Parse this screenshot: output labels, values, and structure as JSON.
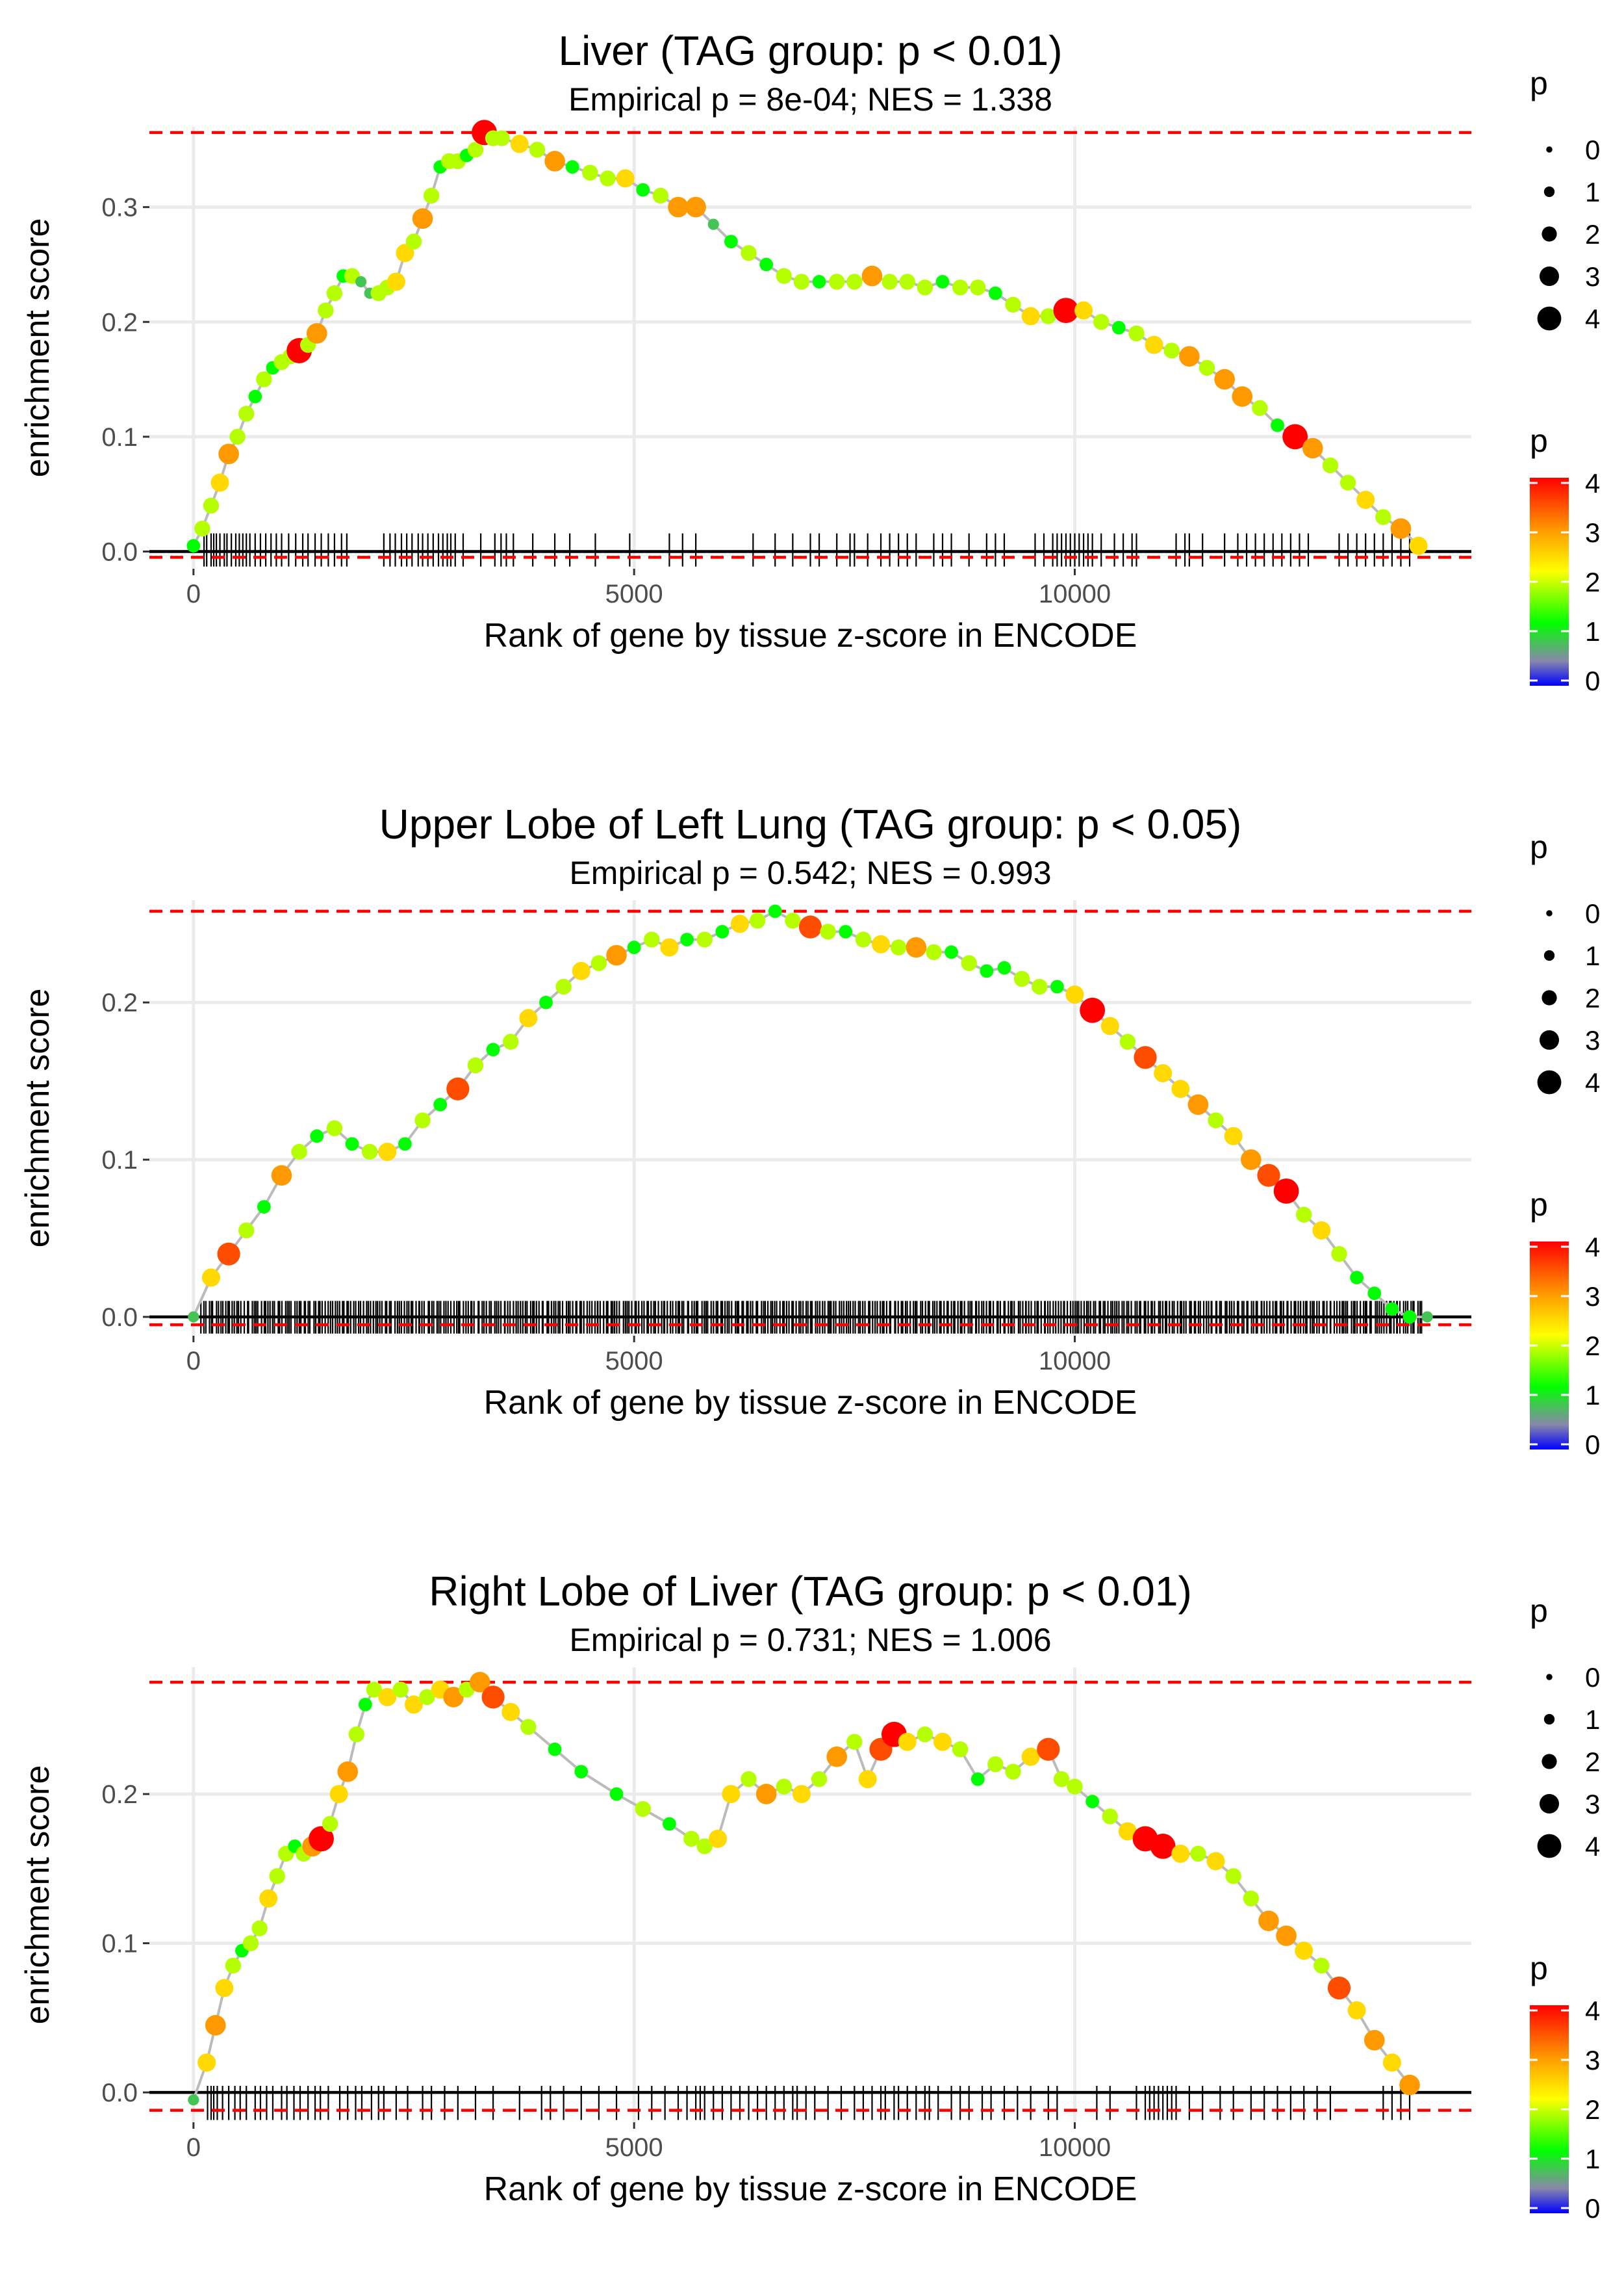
{
  "chart_data": [
    {
      "type": "line",
      "title": "Liver (TAG group: p < 0.01)",
      "subtitle": "Empirical p = 8e-04; NES = 1.338",
      "xlabel": "Rank of gene by tissue z-score in ENCODE",
      "ylabel": "enrichment score",
      "xlim": [
        -500,
        14500
      ],
      "ylim": [
        -0.015,
        0.37
      ],
      "x_ticks": [
        0,
        5000,
        10000
      ],
      "x_tick_labels": [
        "0",
        "5000",
        "10000"
      ],
      "y_ticks": [
        0.0,
        0.1,
        0.2,
        0.3
      ],
      "y_tick_labels": [
        "0.0",
        "0.1",
        "0.2",
        "0.3"
      ],
      "max_es": 0.365,
      "min_es": -0.005,
      "x": [
        0,
        100,
        200,
        300,
        400,
        500,
        600,
        700,
        800,
        900,
        1000,
        1100,
        1200,
        1300,
        1400,
        1500,
        1600,
        1700,
        1800,
        1900,
        2000,
        2100,
        2200,
        2300,
        2400,
        2500,
        2600,
        2700,
        2800,
        2900,
        3000,
        3100,
        3200,
        3300,
        3400,
        3500,
        3700,
        3900,
        4100,
        4300,
        4500,
        4700,
        4900,
        5100,
        5300,
        5500,
        5700,
        5900,
        6100,
        6300,
        6500,
        6700,
        6900,
        7100,
        7300,
        7500,
        7700,
        7900,
        8100,
        8300,
        8500,
        8700,
        8900,
        9100,
        9300,
        9500,
        9700,
        9900,
        10100,
        10300,
        10500,
        10700,
        10900,
        11100,
        11300,
        11500,
        11700,
        11900,
        12100,
        12300,
        12500,
        12700,
        12900,
        13100,
        13300,
        13500,
        13700,
        13900
      ],
      "values": [
        0.005,
        0.02,
        0.04,
        0.06,
        0.085,
        0.1,
        0.12,
        0.135,
        0.15,
        0.16,
        0.165,
        0.17,
        0.175,
        0.18,
        0.19,
        0.21,
        0.225,
        0.24,
        0.24,
        0.235,
        0.225,
        0.225,
        0.23,
        0.235,
        0.26,
        0.27,
        0.29,
        0.31,
        0.335,
        0.34,
        0.34,
        0.345,
        0.35,
        0.365,
        0.36,
        0.36,
        0.355,
        0.35,
        0.34,
        0.335,
        0.33,
        0.325,
        0.325,
        0.315,
        0.31,
        0.3,
        0.3,
        0.285,
        0.27,
        0.26,
        0.25,
        0.24,
        0.235,
        0.235,
        0.235,
        0.235,
        0.24,
        0.235,
        0.235,
        0.23,
        0.235,
        0.23,
        0.23,
        0.225,
        0.215,
        0.205,
        0.205,
        0.21,
        0.21,
        0.2,
        0.195,
        0.19,
        0.18,
        0.175,
        0.17,
        0.16,
        0.15,
        0.135,
        0.125,
        0.11,
        0.1,
        0.09,
        0.075,
        0.06,
        0.045,
        0.03,
        0.02,
        0.005
      ],
      "p": [
        1.5,
        2.0,
        2.0,
        2.5,
        3.0,
        2.0,
        2.0,
        1.5,
        2.0,
        1.5,
        2.0,
        2.0,
        4.0,
        2.0,
        3.0,
        2.0,
        2.0,
        1.5,
        2.0,
        1.0,
        1.0,
        2.0,
        2.0,
        2.5,
        2.5,
        2.0,
        3.0,
        2.0,
        1.5,
        2.0,
        2.0,
        1.5,
        2.0,
        4.0,
        2.0,
        2.0,
        2.5,
        2.0,
        3.0,
        1.5,
        2.0,
        2.0,
        2.5,
        1.5,
        2.0,
        3.0,
        3.0,
        1.0,
        1.5,
        2.0,
        1.5,
        2.0,
        2.0,
        1.5,
        2.0,
        2.0,
        3.0,
        2.0,
        2.0,
        2.0,
        1.5,
        2.0,
        2.0,
        1.5,
        2.0,
        2.5,
        2.0,
        4.0,
        2.5,
        2.0,
        1.5,
        2.0,
        2.5,
        2.0,
        3.0,
        2.0,
        3.0,
        3.0,
        2.0,
        1.5,
        4.0,
        3.0,
        2.0,
        2.0,
        2.5,
        2.0,
        3.0,
        2.5
      ],
      "hits": [
        120,
        150,
        200,
        230,
        260,
        300,
        350,
        380,
        430,
        480,
        520,
        560,
        600,
        640,
        700,
        760,
        820,
        880,
        940,
        1000,
        1080,
        1160,
        1240,
        1300,
        1380,
        1450,
        1530,
        1600,
        1680,
        1740,
        2160,
        2230,
        2290,
        2360,
        2420,
        2480,
        2550,
        2600,
        2660,
        2720,
        2780,
        2830,
        2880,
        2920,
        2970,
        3060,
        3260,
        3420,
        3490,
        3550,
        3630,
        3850,
        4100,
        4270,
        4560,
        4950,
        5400,
        5550,
        5700,
        6350,
        6600,
        6800,
        7000,
        7100,
        7300,
        7450,
        7500,
        7650,
        7800,
        7900,
        8000,
        8100,
        8200,
        8400,
        8500,
        8600,
        8800,
        9000,
        9100,
        9200,
        9550,
        9650,
        9750,
        9800,
        9850,
        9900,
        9950,
        10000,
        10050,
        10100,
        10150,
        10200,
        10300,
        10450,
        10550,
        10650,
        10700,
        11150,
        11250,
        11300,
        11450,
        11700,
        11850,
        11950,
        12050,
        12150,
        12250,
        12350,
        12450,
        12550,
        12650,
        13000,
        13100,
        13200,
        13300,
        13400,
        13500,
        13600,
        13700,
        13800
      ]
    },
    {
      "type": "line",
      "title": "Upper Lobe of Left Lung (TAG group: p < 0.05)",
      "subtitle": "Empirical p = 0.542; NES = 0.993",
      "xlabel": "Rank of gene by tissue z-score in ENCODE",
      "ylabel": "enrichment score",
      "xlim": [
        -500,
        14500
      ],
      "ylim": [
        -0.012,
        0.265
      ],
      "x_ticks": [
        0,
        5000,
        10000
      ],
      "x_tick_labels": [
        "0",
        "5000",
        "10000"
      ],
      "y_ticks": [
        0.0,
        0.1,
        0.2
      ],
      "y_tick_labels": [
        "0.0",
        "0.1",
        "0.2"
      ],
      "max_es": 0.258,
      "min_es": -0.005,
      "x": [
        0,
        200,
        400,
        600,
        800,
        1000,
        1200,
        1400,
        1600,
        1800,
        2000,
        2200,
        2400,
        2600,
        2800,
        3000,
        3200,
        3400,
        3600,
        3800,
        4000,
        4200,
        4400,
        4600,
        4800,
        5000,
        5200,
        5400,
        5600,
        5800,
        6000,
        6200,
        6400,
        6600,
        6800,
        7000,
        7200,
        7400,
        7600,
        7800,
        8000,
        8200,
        8400,
        8600,
        8800,
        9000,
        9200,
        9400,
        9600,
        9800,
        10000,
        10200,
        10400,
        10600,
        10800,
        11000,
        11200,
        11400,
        11600,
        11800,
        12000,
        12200,
        12400,
        12600,
        12800,
        13000,
        13200,
        13400,
        13600,
        13800,
        14000
      ],
      "values": [
        0.0,
        0.025,
        0.04,
        0.055,
        0.07,
        0.09,
        0.105,
        0.115,
        0.12,
        0.11,
        0.105,
        0.105,
        0.11,
        0.125,
        0.135,
        0.145,
        0.16,
        0.17,
        0.175,
        0.19,
        0.2,
        0.21,
        0.22,
        0.225,
        0.23,
        0.235,
        0.24,
        0.235,
        0.24,
        0.24,
        0.245,
        0.25,
        0.252,
        0.258,
        0.252,
        0.248,
        0.245,
        0.245,
        0.24,
        0.237,
        0.235,
        0.235,
        0.232,
        0.232,
        0.225,
        0.22,
        0.222,
        0.215,
        0.21,
        0.21,
        0.205,
        0.195,
        0.185,
        0.175,
        0.165,
        0.155,
        0.145,
        0.135,
        0.125,
        0.115,
        0.1,
        0.09,
        0.08,
        0.065,
        0.055,
        0.04,
        0.025,
        0.015,
        0.005,
        0.0,
        0.0
      ],
      "p": [
        1.0,
        2.5,
        3.5,
        2.0,
        1.5,
        3.0,
        2.0,
        1.5,
        2.0,
        1.5,
        2.0,
        2.5,
        1.5,
        2.0,
        1.5,
        3.5,
        2.0,
        1.5,
        2.0,
        2.5,
        1.5,
        2.0,
        2.5,
        2.0,
        3.0,
        1.5,
        2.0,
        2.5,
        1.5,
        2.0,
        1.5,
        2.5,
        2.0,
        1.5,
        2.0,
        3.5,
        2.0,
        1.5,
        2.0,
        2.5,
        2.0,
        3.0,
        2.0,
        1.5,
        2.0,
        1.5,
        1.5,
        2.0,
        2.0,
        1.5,
        2.5,
        4.0,
        2.5,
        2.0,
        3.5,
        2.5,
        2.5,
        3.0,
        2.0,
        2.5,
        3.0,
        3.5,
        4.0,
        2.0,
        2.5,
        2.0,
        1.5,
        1.5,
        1.5,
        1.5,
        1.0
      ],
      "hit_range": [
        90,
        13950
      ],
      "hit_step": 27
    },
    {
      "type": "line",
      "title": "Right Lobe of Liver (TAG group: p < 0.01)",
      "subtitle": "Empirical p = 0.731; NES = 1.006",
      "xlabel": "Rank of gene by tissue z-score in ENCODE",
      "ylabel": "enrichment score",
      "xlim": [
        -500,
        14500
      ],
      "ylim": [
        -0.02,
        0.285
      ],
      "x_ticks": [
        0,
        5000,
        10000
      ],
      "x_tick_labels": [
        "0",
        "5000",
        "10000"
      ],
      "y_ticks": [
        0.0,
        0.1,
        0.2
      ],
      "y_tick_labels": [
        "0.0",
        "0.1",
        "0.2"
      ],
      "max_es": 0.275,
      "min_es": -0.012,
      "x": [
        0,
        150,
        250,
        350,
        450,
        550,
        650,
        750,
        850,
        950,
        1050,
        1150,
        1250,
        1350,
        1450,
        1550,
        1650,
        1750,
        1850,
        1950,
        2050,
        2200,
        2350,
        2500,
        2650,
        2800,
        2950,
        3100,
        3250,
        3400,
        3600,
        3800,
        4100,
        4400,
        4800,
        5100,
        5400,
        5650,
        5800,
        5950,
        6100,
        6300,
        6500,
        6700,
        6900,
        7100,
        7300,
        7500,
        7650,
        7800,
        7950,
        8100,
        8300,
        8500,
        8700,
        8900,
        9100,
        9300,
        9500,
        9700,
        9850,
        10000,
        10200,
        10400,
        10600,
        10800,
        11000,
        11200,
        11400,
        11600,
        11800,
        12000,
        12200,
        12400,
        12600,
        12800,
        13000,
        13200,
        13400,
        13600,
        13800
      ],
      "values": [
        -0.005,
        0.02,
        0.045,
        0.07,
        0.085,
        0.095,
        0.1,
        0.11,
        0.13,
        0.145,
        0.16,
        0.165,
        0.16,
        0.165,
        0.17,
        0.18,
        0.2,
        0.215,
        0.24,
        0.26,
        0.27,
        0.265,
        0.27,
        0.26,
        0.265,
        0.27,
        0.265,
        0.27,
        0.275,
        0.265,
        0.255,
        0.245,
        0.23,
        0.215,
        0.2,
        0.19,
        0.18,
        0.17,
        0.165,
        0.17,
        0.2,
        0.21,
        0.2,
        0.205,
        0.2,
        0.21,
        0.225,
        0.235,
        0.21,
        0.23,
        0.24,
        0.235,
        0.24,
        0.235,
        0.23,
        0.21,
        0.22,
        0.215,
        0.225,
        0.23,
        0.21,
        0.205,
        0.195,
        0.185,
        0.175,
        0.17,
        0.165,
        0.16,
        0.16,
        0.155,
        0.145,
        0.13,
        0.115,
        0.105,
        0.095,
        0.085,
        0.07,
        0.055,
        0.035,
        0.02,
        0.005
      ],
      "p": [
        1.0,
        2.5,
        3.0,
        2.5,
        2.0,
        1.5,
        2.0,
        2.0,
        2.5,
        2.0,
        2.0,
        1.5,
        2.0,
        3.0,
        4.0,
        2.0,
        2.5,
        3.0,
        2.0,
        1.5,
        2.0,
        2.5,
        2.0,
        2.5,
        2.0,
        2.5,
        3.0,
        2.0,
        3.0,
        3.5,
        2.5,
        2.0,
        1.5,
        1.5,
        1.5,
        2.0,
        1.5,
        2.0,
        2.0,
        2.5,
        2.5,
        2.0,
        3.0,
        2.0,
        2.5,
        2.0,
        3.0,
        2.0,
        2.5,
        3.5,
        4.0,
        2.5,
        2.0,
        2.5,
        2.0,
        1.5,
        2.0,
        2.0,
        2.5,
        3.5,
        2.0,
        2.0,
        1.5,
        2.0,
        2.5,
        4.0,
        4.0,
        2.5,
        2.0,
        2.5,
        2.0,
        2.0,
        3.0,
        3.0,
        2.5,
        2.0,
        3.5,
        2.5,
        3.0,
        2.5,
        3.0
      ],
      "hits": [
        160,
        200,
        230,
        270,
        330,
        400,
        470,
        530,
        600,
        700,
        760,
        830,
        900,
        1000,
        1060,
        1140,
        1210,
        1300,
        1380,
        1440,
        1530,
        1660,
        1750,
        1840,
        1910,
        2020,
        2100,
        2160,
        2300,
        2430,
        2600,
        2700,
        2850,
        3000,
        3200,
        3400,
        3700,
        3950,
        4050,
        4200,
        4400,
        4600,
        4800,
        5050,
        5200,
        5350,
        5500,
        5600,
        5700,
        5750,
        5800,
        5900,
        6000,
        6100,
        6200,
        6300,
        6400,
        6500,
        6600,
        6700,
        6800,
        6850,
        6950,
        7050,
        7200,
        7350,
        7500,
        7600,
        7700,
        7800,
        7850,
        7950,
        8000,
        8100,
        8200,
        8300,
        8350,
        8450,
        8600,
        8700,
        8800,
        8950,
        9050,
        9200,
        9350,
        9500,
        9700,
        9800,
        10250,
        10400,
        10700,
        10800,
        10850,
        10900,
        10950,
        11000,
        11050,
        11100,
        11150,
        11300,
        11450,
        11650,
        11800,
        12000,
        12150,
        12300,
        12450,
        12600,
        12750,
        12900,
        13500,
        13600,
        13700,
        13800
      ]
    }
  ],
  "legend": {
    "title": "p",
    "size_labels": [
      "0",
      "1",
      "2",
      "3",
      "4"
    ],
    "color_labels": [
      "4",
      "3",
      "2",
      "1",
      "0"
    ],
    "gradient_colors": [
      "#ff0000",
      "#ff9900",
      "#ffff00",
      "#00ff00",
      "#8888aa",
      "#0000ff"
    ]
  },
  "colors": {
    "es_line": "#bbbbbb",
    "threshold_line": "#ff0000",
    "zero_line": "#000000",
    "grid": "#ebebeb",
    "hit_tick": "#000000"
  }
}
